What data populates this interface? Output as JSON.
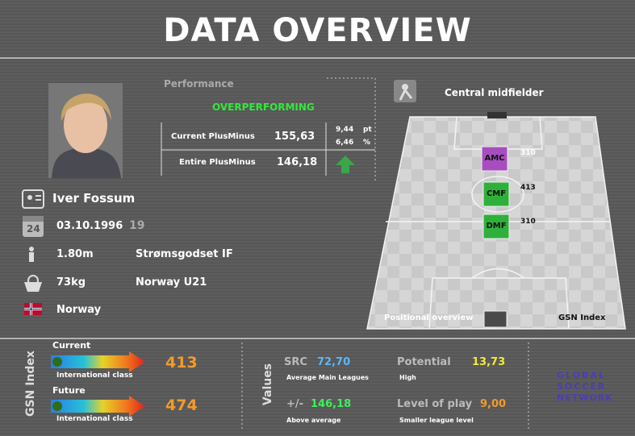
{
  "header": {
    "title": "DATA OVERVIEW"
  },
  "performance": {
    "label": "Performance",
    "status": "OVERPERFORMING",
    "current_label": "Current PlusMinus",
    "current_value": "155,63",
    "entire_label": "Entire PlusMinus",
    "entire_value": "146,18",
    "delta": "9,44",
    "delta_unit": "pt",
    "percent": "6,46",
    "percent_unit": "%"
  },
  "player": {
    "name": "Iver Fossum",
    "calendar_day": "24",
    "birthdate": "03.10.1996",
    "age": "19",
    "height": "1.80m",
    "club": "Strømsgodset IF",
    "weight": "73kg",
    "team": "Norway U21",
    "nationality": "Norway"
  },
  "pitch": {
    "position": "Central midfielder",
    "roles": [
      {
        "label": "AMC",
        "value": "310"
      },
      {
        "label": "CMF",
        "value": "413"
      },
      {
        "label": "DMF",
        "value": "310"
      }
    ],
    "left_caption": "Positional overview",
    "right_caption": "GSN Index"
  },
  "gsn": {
    "label": "GSN Index",
    "current": {
      "label": "Current",
      "value": "413",
      "class": "International class"
    },
    "future": {
      "label": "Future",
      "value": "474",
      "class": "International class"
    }
  },
  "values": {
    "label": "Values",
    "src": {
      "label": "SRC",
      "value": "72,70",
      "note": "Average Main Leagues"
    },
    "plusminus": {
      "label": "+/-",
      "value": "146,18",
      "note": "Above average"
    },
    "potential": {
      "label": "Potential",
      "value": "13,73",
      "note": "High"
    },
    "level": {
      "label": "Level of play",
      "value": "9,00",
      "note": "Smaller league level"
    }
  },
  "logo": {
    "lines": [
      "GLOBAL",
      "SOCCER",
      "NETWORK"
    ]
  }
}
